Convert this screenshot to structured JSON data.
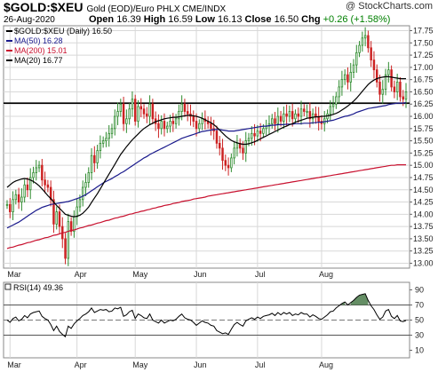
{
  "header": {
    "symbol": "$GOLD:$XEU",
    "description": "Gold (EOD)/Euro PHLX  CME/INDX",
    "credit": "@ StockCharts.com",
    "date": "26-Aug-2020",
    "open_label": "Open",
    "open": "16.39",
    "high_label": "High",
    "high": "16.59",
    "low_label": "Low",
    "low": "16.13",
    "close_label": "Close",
    "close": "16.50",
    "chg_label": "Chg",
    "chg": "+0.26 (+1.58%)",
    "chg_color": "#008000"
  },
  "chart_data": [
    {
      "type": "candlestick",
      "title": "$GOLD:$XEU (Daily) 16.50",
      "ylim": [
        12.9,
        17.85
      ],
      "y_ticks": [
        "17.75",
        "17.50",
        "17.25",
        "17.00",
        "16.75",
        "16.50",
        "16.25",
        "16.00",
        "15.75",
        "15.50",
        "15.25",
        "15.00",
        "14.75",
        "14.50",
        "14.25",
        "14.00",
        "13.75",
        "13.50",
        "13.25",
        "13.00"
      ],
      "x_ticks": [
        "Mar",
        "Apr",
        "May",
        "Jun",
        "Jul",
        "Aug"
      ],
      "horizontal_line": 16.27,
      "close_series": [
        14.2,
        14.05,
        14.3,
        14.4,
        14.25,
        14.35,
        14.6,
        14.5,
        14.75,
        14.85,
        14.95,
        15.0,
        14.7,
        14.6,
        14.55,
        14.3,
        13.8,
        14.05,
        13.75,
        13.5,
        13.1,
        13.85,
        13.65,
        13.95,
        14.15,
        14.3,
        14.55,
        14.65,
        14.85,
        15.2,
        15.05,
        15.3,
        15.45,
        15.5,
        15.55,
        15.65,
        15.75,
        16.0,
        16.1,
        16.25,
        15.85,
        15.95,
        16.15,
        16.35,
        15.9,
        16.2,
        16.15,
        16.05,
        16.0,
        16.25,
        15.95,
        15.85,
        15.75,
        15.9,
        15.75,
        15.8,
        15.9,
        15.85,
        15.95,
        16.1,
        16.25,
        16.1,
        16.05,
        16.0,
        15.9,
        15.75,
        15.85,
        15.95,
        15.9,
        15.85,
        15.75,
        15.7,
        15.45,
        15.35,
        15.1,
        15.0,
        14.95,
        15.15,
        15.35,
        15.45,
        15.35,
        15.25,
        15.5,
        15.55,
        15.65,
        15.6,
        15.7,
        15.65,
        15.75,
        15.8,
        15.85,
        15.95,
        15.85,
        16.0,
        15.9,
        16.05,
        16.0,
        16.1,
        15.95,
        16.05,
        16.0,
        16.15,
        16.1,
        16.1,
        15.95,
        16.05,
        16.0,
        15.9,
        15.85,
        15.95,
        16.05,
        16.2,
        16.25,
        16.4,
        16.6,
        16.75,
        16.85,
        16.7,
        16.9,
        17.05,
        17.3,
        17.45,
        17.6,
        17.65,
        17.4,
        17.15,
        16.95,
        16.7,
        16.45,
        16.55,
        16.85,
        16.95,
        16.6,
        16.5,
        16.7,
        16.4,
        16.35,
        16.5
      ],
      "series": [
        {
          "name": "MA(50) 16.28",
          "color": "#1a1a8c",
          "values": [
            13.72,
            13.75,
            13.78,
            13.81,
            13.84,
            13.88,
            13.92,
            13.96,
            14.0,
            14.04,
            14.08,
            14.11,
            14.14,
            14.16,
            14.18,
            14.2,
            14.21,
            14.22,
            14.23,
            14.24,
            14.25,
            14.26,
            14.28,
            14.3,
            14.32,
            14.34,
            14.37,
            14.4,
            14.44,
            14.48,
            14.52,
            14.56,
            14.6,
            14.64,
            14.67,
            14.7,
            14.73,
            14.77,
            14.8,
            14.84,
            14.87,
            14.91,
            14.95,
            14.99,
            15.03,
            15.07,
            15.11,
            15.15,
            15.18,
            15.22,
            15.25,
            15.28,
            15.31,
            15.34,
            15.37,
            15.4,
            15.43,
            15.46,
            15.49,
            15.52,
            15.55,
            15.57,
            15.59,
            15.61,
            15.63,
            15.65,
            15.67,
            15.69,
            15.7,
            15.71,
            15.72,
            15.73,
            15.73,
            15.73,
            15.72,
            15.71,
            15.7,
            15.7,
            15.7,
            15.71,
            15.72,
            15.73,
            15.74,
            15.75,
            15.76,
            15.77,
            15.78,
            15.79,
            15.8,
            15.8,
            15.81,
            15.82,
            15.82,
            15.83,
            15.83,
            15.83,
            15.84,
            15.84,
            15.84,
            15.85,
            15.85,
            15.85,
            15.86,
            15.86,
            15.86,
            15.87,
            15.87,
            15.88,
            15.88,
            15.89,
            15.9,
            15.91,
            15.92,
            15.94,
            15.96,
            15.98,
            16.0,
            16.01,
            16.03,
            16.05,
            16.08,
            16.1,
            16.12,
            16.14,
            16.16,
            16.17,
            16.18,
            16.19,
            16.2,
            16.21,
            16.22,
            16.24,
            16.25,
            16.26,
            16.27,
            16.27,
            16.27,
            16.28
          ]
        },
        {
          "name": "MA(200) 15.01",
          "color": "#c8102e",
          "values": [
            13.3,
            13.32,
            13.33,
            13.35,
            13.37,
            13.38,
            13.4,
            13.42,
            13.43,
            13.45,
            13.47,
            13.48,
            13.5,
            13.52,
            13.53,
            13.55,
            13.57,
            13.58,
            13.6,
            13.62,
            13.63,
            13.65,
            13.67,
            13.68,
            13.7,
            13.72,
            13.73,
            13.75,
            13.77,
            13.78,
            13.8,
            13.82,
            13.83,
            13.85,
            13.87,
            13.88,
            13.9,
            13.92,
            13.93,
            13.95,
            13.96,
            13.98,
            14.0,
            14.01,
            14.03,
            14.04,
            14.06,
            14.07,
            14.09,
            14.1,
            14.12,
            14.13,
            14.15,
            14.16,
            14.18,
            14.19,
            14.2,
            14.22,
            14.23,
            14.24,
            14.26,
            14.27,
            14.28,
            14.29,
            14.31,
            14.32,
            14.33,
            14.34,
            14.35,
            14.37,
            14.38,
            14.39,
            14.4,
            14.41,
            14.42,
            14.43,
            14.44,
            14.45,
            14.46,
            14.47,
            14.48,
            14.49,
            14.5,
            14.51,
            14.52,
            14.53,
            14.54,
            14.55,
            14.56,
            14.57,
            14.58,
            14.59,
            14.6,
            14.61,
            14.62,
            14.63,
            14.64,
            14.65,
            14.66,
            14.67,
            14.68,
            14.69,
            14.7,
            14.71,
            14.72,
            14.73,
            14.74,
            14.75,
            14.76,
            14.77,
            14.78,
            14.79,
            14.8,
            14.81,
            14.82,
            14.83,
            14.84,
            14.85,
            14.86,
            14.87,
            14.88,
            14.89,
            14.9,
            14.91,
            14.92,
            14.93,
            14.94,
            14.95,
            14.96,
            14.97,
            14.98,
            14.99,
            15.0,
            15.0,
            15.01,
            15.01,
            15.01,
            15.01
          ]
        },
        {
          "name": "MA(20) 16.77",
          "color": "#000000",
          "values": [
            14.55,
            14.6,
            14.65,
            14.68,
            14.7,
            14.72,
            14.73,
            14.72,
            14.7,
            14.67,
            14.63,
            14.58,
            14.52,
            14.45,
            14.38,
            14.32,
            14.25,
            14.18,
            14.12,
            14.06,
            14.0,
            13.98,
            13.96,
            13.95,
            13.96,
            13.98,
            14.02,
            14.08,
            14.15,
            14.24,
            14.33,
            14.42,
            14.52,
            14.62,
            14.72,
            14.82,
            14.92,
            15.02,
            15.12,
            15.22,
            15.3,
            15.38,
            15.45,
            15.52,
            15.58,
            15.64,
            15.7,
            15.75,
            15.79,
            15.83,
            15.86,
            15.89,
            15.91,
            15.93,
            15.95,
            15.96,
            15.97,
            15.98,
            15.98,
            15.99,
            16.0,
            16.01,
            16.02,
            16.02,
            16.01,
            16.0,
            15.98,
            15.96,
            15.93,
            15.9,
            15.87,
            15.83,
            15.78,
            15.72,
            15.66,
            15.6,
            15.55,
            15.51,
            15.48,
            15.46,
            15.44,
            15.43,
            15.43,
            15.44,
            15.46,
            15.48,
            15.51,
            15.54,
            15.57,
            15.6,
            15.63,
            15.66,
            15.69,
            15.72,
            15.75,
            15.78,
            15.8,
            15.83,
            15.85,
            15.88,
            15.9,
            15.92,
            15.94,
            15.96,
            15.97,
            15.98,
            15.99,
            15.99,
            16.0,
            16.0,
            16.01,
            16.02,
            16.04,
            16.06,
            16.09,
            16.13,
            16.17,
            16.21,
            16.26,
            16.31,
            16.37,
            16.44,
            16.51,
            16.58,
            16.65,
            16.7,
            16.74,
            16.77,
            16.79,
            16.8,
            16.81,
            16.81,
            16.8,
            16.79,
            16.78,
            16.77,
            16.77,
            16.77
          ]
        }
      ],
      "legend_placement": "top-left"
    },
    {
      "type": "line",
      "title": "RSI(14) 49.36",
      "ylim": [
        0,
        100
      ],
      "y_ticks": [
        "90",
        "70",
        "50",
        "30",
        "10"
      ],
      "reference_lines": [
        70,
        50,
        30
      ],
      "x_ticks": [
        "Mar",
        "Apr",
        "May",
        "Jun",
        "Jul",
        "Aug"
      ],
      "series": [
        {
          "name": "RSI(14) 49.36",
          "color": "#000000",
          "values": [
            50,
            47,
            52,
            54,
            49,
            51,
            56,
            53,
            58,
            60,
            61,
            62,
            55,
            52,
            50,
            44,
            36,
            42,
            35,
            31,
            28,
            42,
            39,
            45,
            49,
            52,
            56,
            58,
            61,
            66,
            60,
            62,
            64,
            63,
            64,
            61,
            62,
            66,
            65,
            67,
            55,
            57,
            61,
            63,
            52,
            58,
            56,
            53,
            52,
            58,
            50,
            48,
            46,
            50,
            46,
            48,
            50,
            49,
            51,
            55,
            58,
            53,
            51,
            50,
            47,
            43,
            46,
            49,
            47,
            46,
            43,
            42,
            36,
            34,
            32,
            33,
            31,
            38,
            44,
            47,
            44,
            42,
            49,
            51,
            53,
            51,
            54,
            52,
            55,
            56,
            57,
            59,
            56,
            60,
            57,
            60,
            58,
            60,
            56,
            58,
            57,
            60,
            58,
            58,
            54,
            57,
            55,
            52,
            51,
            54,
            57,
            61,
            62,
            66,
            69,
            72,
            74,
            70,
            73,
            76,
            80,
            83,
            84,
            85,
            76,
            69,
            64,
            57,
            51,
            54,
            62,
            64,
            55,
            52,
            56,
            49,
            48,
            49.36
          ]
        }
      ],
      "fill_above": {
        "level": 70,
        "color": "#4a7a4a"
      },
      "fill_below": {
        "level": 30,
        "color": "#b03030"
      }
    }
  ]
}
